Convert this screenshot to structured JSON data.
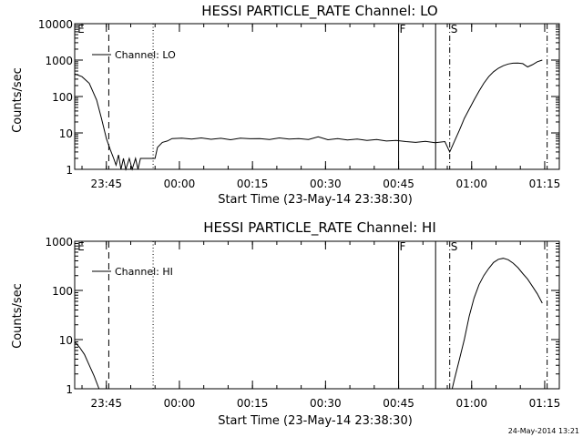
{
  "chart_data": [
    {
      "type": "line",
      "title": "HESSI PARTICLE_RATE Channel: LO",
      "xlabel": "Start Time (23-May-14 23:38:30)",
      "ylabel": "Counts/sec",
      "yscale": "log",
      "ylim": [
        1,
        10000
      ],
      "xlim_minutes_from_start": [
        0,
        99.5
      ],
      "x_ticks": [
        {
          "label": "23:45",
          "t": 6.5
        },
        {
          "label": "00:00",
          "t": 21.5
        },
        {
          "label": "00:15",
          "t": 36.5
        },
        {
          "label": "00:30",
          "t": 51.5
        },
        {
          "label": "00:45",
          "t": 66.5
        },
        {
          "label": "01:00",
          "t": 81.5
        },
        {
          "label": "01:15",
          "t": 96.5
        }
      ],
      "y_ticks": [
        {
          "label": "1",
          "v": 1
        },
        {
          "label": "10",
          "v": 10
        },
        {
          "label": "100",
          "v": 100
        },
        {
          "label": "1000",
          "v": 1000
        },
        {
          "label": "10000",
          "v": 10000
        }
      ],
      "legend": {
        "label": "Channel: LO",
        "placement": "top-left"
      },
      "markers": [
        {
          "label": "E",
          "t": 0.4,
          "style": "none"
        },
        {
          "label": "",
          "t": 7.0,
          "style": "dashed"
        },
        {
          "label": "",
          "t": 16.1,
          "style": "dotted"
        },
        {
          "label": "F",
          "t": 66.5,
          "style": "solid"
        },
        {
          "label": "",
          "t": 74.1,
          "style": "solid"
        },
        {
          "label": "S",
          "t": 77.0,
          "style": "dashdot"
        },
        {
          "label": "",
          "t": 97.0,
          "style": "dashdot"
        }
      ],
      "series": [
        {
          "name": "Channel: LO",
          "points": [
            [
              0,
              420
            ],
            [
              1.5,
              350
            ],
            [
              3,
              230
            ],
            [
              4.5,
              80
            ],
            [
              5.5,
              25
            ],
            [
              6.5,
              7
            ],
            [
              7.3,
              3.5
            ],
            [
              8,
              2
            ],
            [
              8.5,
              1.3
            ],
            [
              9,
              2.5
            ],
            [
              9.5,
              1
            ],
            [
              10,
              2
            ],
            [
              10.5,
              1
            ],
            [
              11.2,
              2
            ],
            [
              11.8,
              1
            ],
            [
              12.5,
              2
            ],
            [
              13,
              1
            ],
            [
              13.5,
              2
            ],
            [
              14.5,
              2
            ],
            [
              15.5,
              2
            ],
            [
              16.5,
              2
            ],
            [
              17,
              4
            ],
            [
              18,
              5.5
            ],
            [
              19,
              6
            ],
            [
              20,
              7
            ],
            [
              22,
              7.2
            ],
            [
              24,
              6.8
            ],
            [
              26,
              7.3
            ],
            [
              28,
              6.7
            ],
            [
              30,
              7.1
            ],
            [
              32,
              6.5
            ],
            [
              34,
              7.2
            ],
            [
              36,
              6.9
            ],
            [
              38,
              7
            ],
            [
              40,
              6.6
            ],
            [
              42,
              7.3
            ],
            [
              44,
              6.8
            ],
            [
              46,
              7
            ],
            [
              48,
              6.6
            ],
            [
              50,
              7.8
            ],
            [
              52,
              6.5
            ],
            [
              54,
              7
            ],
            [
              56,
              6.4
            ],
            [
              58,
              6.8
            ],
            [
              60,
              6.2
            ],
            [
              62,
              6.6
            ],
            [
              64,
              6
            ],
            [
              66,
              6.2
            ],
            [
              68,
              5.8
            ],
            [
              70,
              5.5
            ],
            [
              72,
              5.9
            ],
            [
              74,
              5.4
            ],
            [
              76,
              5.8
            ],
            [
              77,
              3
            ],
            [
              78,
              6
            ],
            [
              79,
              12
            ],
            [
              80,
              25
            ],
            [
              81,
              45
            ],
            [
              82,
              80
            ],
            [
              83,
              140
            ],
            [
              84,
              230
            ],
            [
              85,
              350
            ],
            [
              86,
              480
            ],
            [
              87,
              600
            ],
            [
              88,
              700
            ],
            [
              89,
              780
            ],
            [
              90,
              820
            ],
            [
              91,
              830
            ],
            [
              92,
              800
            ],
            [
              93,
              650
            ],
            [
              94,
              750
            ],
            [
              95,
              900
            ],
            [
              96,
              1000
            ]
          ]
        }
      ]
    },
    {
      "type": "line",
      "title": "HESSI PARTICLE_RATE Channel: HI",
      "xlabel": "Start Time (23-May-14 23:38:30)",
      "ylabel": "Counts/sec",
      "yscale": "log",
      "ylim": [
        1,
        1000
      ],
      "xlim_minutes_from_start": [
        0,
        99.5
      ],
      "x_ticks": [
        {
          "label": "23:45",
          "t": 6.5
        },
        {
          "label": "00:00",
          "t": 21.5
        },
        {
          "label": "00:15",
          "t": 36.5
        },
        {
          "label": "00:30",
          "t": 51.5
        },
        {
          "label": "00:45",
          "t": 66.5
        },
        {
          "label": "01:00",
          "t": 81.5
        },
        {
          "label": "01:15",
          "t": 96.5
        }
      ],
      "y_ticks": [
        {
          "label": "1",
          "v": 1
        },
        {
          "label": "10",
          "v": 10
        },
        {
          "label": "100",
          "v": 100
        },
        {
          "label": "1000",
          "v": 1000
        }
      ],
      "legend": {
        "label": "Channel: HI",
        "placement": "top-left"
      },
      "markers": [
        {
          "label": "E",
          "t": 0.4,
          "style": "none"
        },
        {
          "label": "",
          "t": 7.0,
          "style": "dashed"
        },
        {
          "label": "",
          "t": 16.1,
          "style": "dotted"
        },
        {
          "label": "F",
          "t": 66.5,
          "style": "solid"
        },
        {
          "label": "",
          "t": 74.1,
          "style": "solid"
        },
        {
          "label": "S",
          "t": 77.0,
          "style": "dashdot"
        },
        {
          "label": "",
          "t": 97.0,
          "style": "dashdot"
        }
      ],
      "series": [
        {
          "name": "Channel: HI",
          "points": [
            [
              0,
              9
            ],
            [
              1,
              7
            ],
            [
              2,
              5
            ],
            [
              3,
              3
            ],
            [
              4,
              1.8
            ],
            [
              5,
              1
            ]
          ]
        },
        {
          "name": "Channel: HI",
          "points": [
            [
              77.5,
              1
            ],
            [
              78,
              1.6
            ],
            [
              79,
              4
            ],
            [
              80,
              10
            ],
            [
              81,
              30
            ],
            [
              82,
              70
            ],
            [
              83,
              130
            ],
            [
              84,
              200
            ],
            [
              85,
              280
            ],
            [
              86,
              370
            ],
            [
              87,
              430
            ],
            [
              88,
              450
            ],
            [
              89,
              420
            ],
            [
              90,
              360
            ],
            [
              91,
              290
            ],
            [
              92,
              220
            ],
            [
              93,
              170
            ],
            [
              94,
              120
            ],
            [
              95,
              85
            ],
            [
              96,
              55
            ]
          ]
        }
      ]
    }
  ],
  "timestamp": "24-May-2014 13:21"
}
